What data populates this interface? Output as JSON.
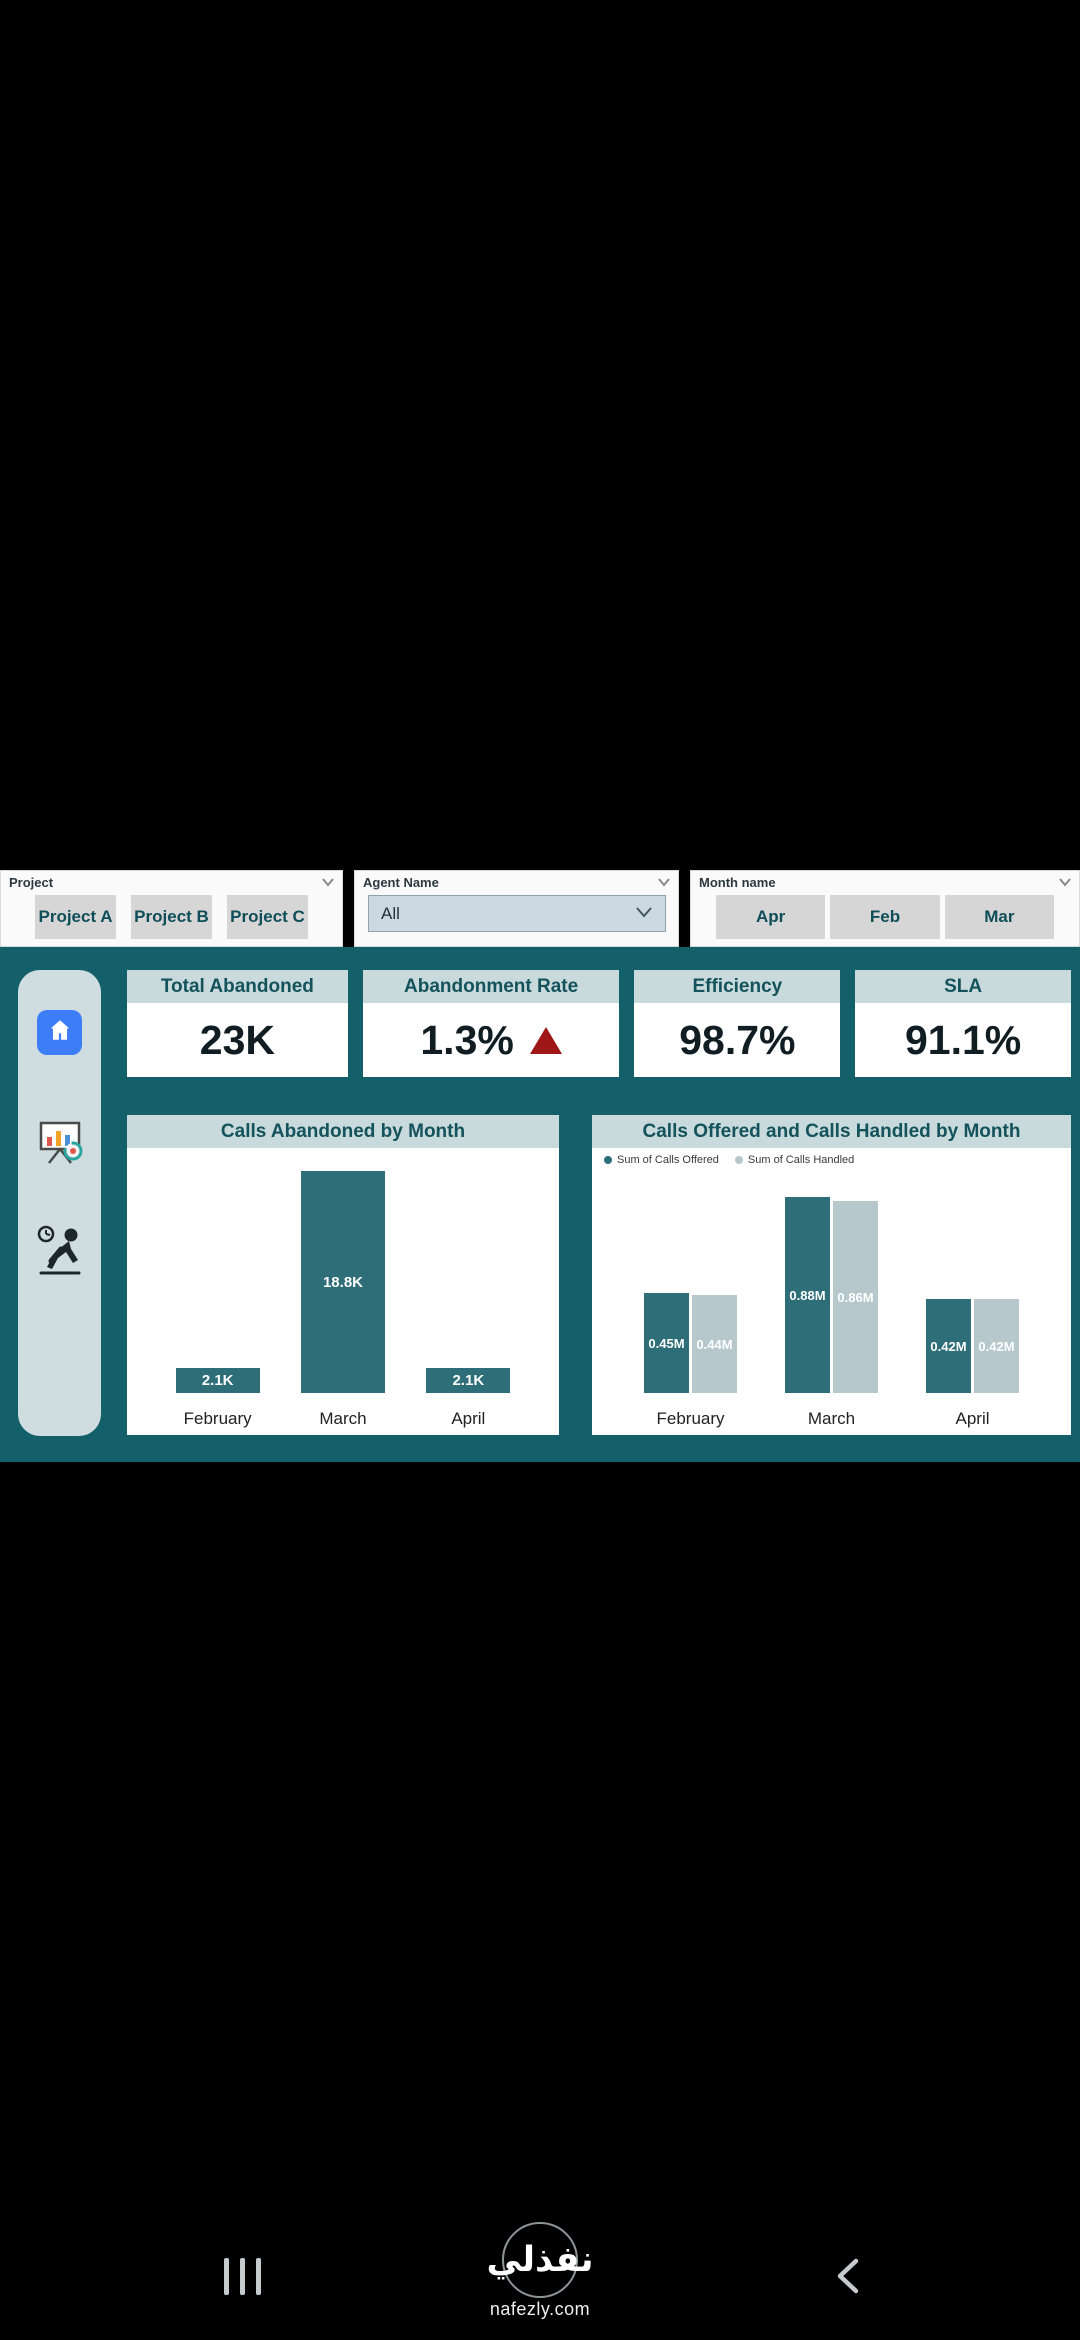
{
  "filters": {
    "project": {
      "label": "Project",
      "options": [
        "Project A",
        "Project B",
        "Project C"
      ]
    },
    "agent": {
      "label": "Agent Name",
      "value": "All"
    },
    "month": {
      "label": "Month name",
      "options": [
        "Apr",
        "Feb",
        "Mar"
      ]
    }
  },
  "kpis": {
    "total_abandoned": {
      "title": "Total Abandoned",
      "value": "23K"
    },
    "abandonment_rate": {
      "title": "Abandonment Rate",
      "value": "1.3%",
      "trend": "up",
      "trend_color": "#9e1616"
    },
    "efficiency": {
      "title": "Efficiency",
      "value": "98.7%"
    },
    "sla": {
      "title": "SLA",
      "value": "91.1%"
    }
  },
  "chart_data": [
    {
      "type": "bar",
      "title": "Calls Abandoned by Month",
      "categories": [
        "February",
        "March",
        "April"
      ],
      "values": [
        2100,
        18800,
        2100
      ],
      "labels": [
        "2.1K",
        "18.8K",
        "2.1K"
      ],
      "color": "#2e6e79",
      "xlabel": "",
      "ylabel": "",
      "ylim": [
        0,
        20000
      ],
      "grid": false,
      "legend": false
    },
    {
      "type": "bar",
      "title": "Calls Offered and Calls Handled by Month",
      "categories": [
        "February",
        "March",
        "April"
      ],
      "series": [
        {
          "name": "Sum of Calls Offered",
          "values": [
            450000,
            880000,
            420000
          ],
          "labels": [
            "0.45M",
            "0.88M",
            "0.42M"
          ],
          "color": "#2e6e79"
        },
        {
          "name": "Sum of Calls Handled",
          "values": [
            440000,
            860000,
            420000
          ],
          "labels": [
            "0.44M",
            "0.86M",
            "0.42M"
          ],
          "color": "#b6c8cc"
        }
      ],
      "xlabel": "",
      "ylabel": "",
      "ylim": [
        0,
        950000
      ],
      "grid": false,
      "legend_position": "top-left"
    }
  ],
  "watermark": {
    "brand": "نفذلي",
    "site": "nafezly.com"
  },
  "colors": {
    "dashboard_background": "#14606a",
    "card_header": "#c8dadb",
    "header_text": "#14525c",
    "bar_dark": "#2e6e79",
    "bar_light": "#b6c8cc",
    "alert_red": "#9e1616",
    "home_button_blue": "#3d7ef8"
  }
}
